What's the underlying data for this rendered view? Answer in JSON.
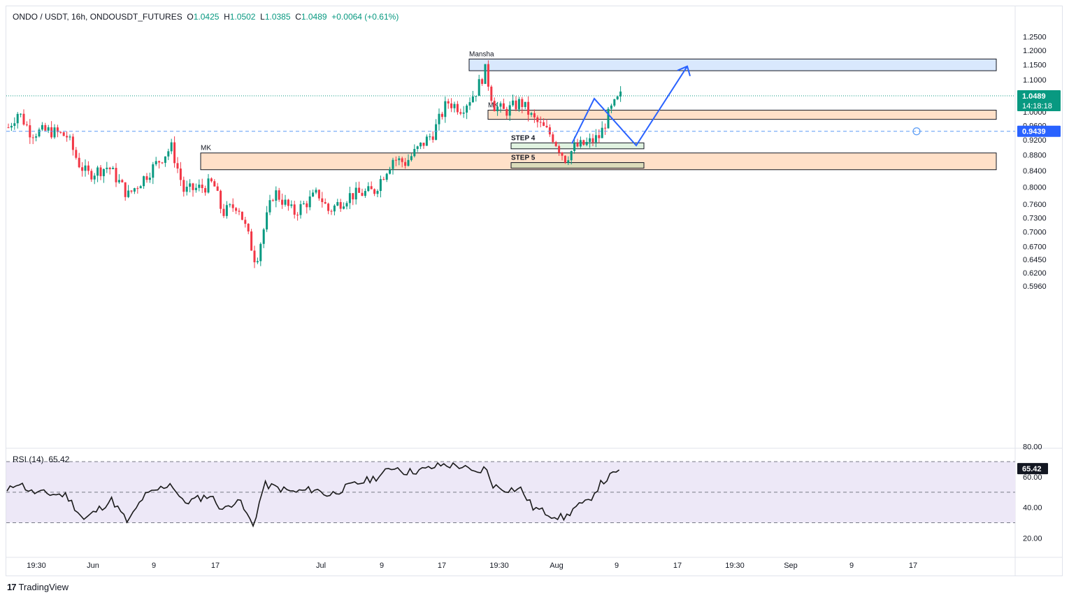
{
  "header": {
    "symbol": "ONDO / USDT, 16h, ONDOUSDT_FUTURES",
    "o_label": "O",
    "o_value": "1.0425",
    "h_label": "H",
    "h_value": "1.0502",
    "l_label": "L",
    "l_value": "1.0385",
    "c_label": "C",
    "c_value": "1.0489",
    "change": "+0.0064 (+0.61%)"
  },
  "rsi_legend": {
    "name": "RSI (14)",
    "value": "65.42"
  },
  "footer": {
    "brand": "TradingView",
    "logo_mark": "17"
  },
  "colors": {
    "up": "#089981",
    "down": "#f23645",
    "accent": "#2962ff",
    "zone_orange": "#ffe0c8",
    "zone_blue": "#d9e8fd",
    "zone_green": "#e0f2e0",
    "zone_olive": "#dcdcba",
    "rsi_band": "#ede8f7"
  },
  "chart_data": [
    {
      "type": "candlestick",
      "title": "",
      "y_scale": "log",
      "ylim": [
        0.585,
        1.255
      ],
      "y_ticks": [
        "1.2500",
        "1.2000",
        "1.1500",
        "1.1000",
        "1.0000",
        "0.9600",
        "0.9200",
        "0.8800",
        "0.8400",
        "0.8000",
        "0.7600",
        "0.7300",
        "0.7000",
        "0.6700",
        "0.6450",
        "0.6200",
        "0.5960"
      ],
      "x_tick_labels": [
        "19:30",
        "Jun",
        "9",
        "17",
        "Jul",
        "9",
        "17",
        "19:30",
        "Aug",
        "9",
        "17",
        "19:30",
        "Sep",
        "9",
        "17"
      ],
      "last_price_label": "1.0489",
      "countdown": "14:18:18",
      "alert_price_label": "0.9439",
      "annotations": [
        {
          "text": "Mansha",
          "kind": "zone",
          "color": "blue",
          "top": 1.17,
          "bottom": 1.13
        },
        {
          "text": "MK",
          "kind": "zone",
          "color": "orange",
          "top": 1.005,
          "bottom": 0.978
        },
        {
          "text": "MK",
          "kind": "zone",
          "color": "orange",
          "top": 0.885,
          "bottom": 0.842
        },
        {
          "text": "STEP 4",
          "kind": "zone",
          "color": "green",
          "top": 0.912,
          "bottom": 0.896
        },
        {
          "text": "STEP 5",
          "kind": "zone",
          "color": "olive",
          "top": 0.86,
          "bottom": 0.846
        }
      ],
      "projection_path_prices": [
        0.91,
        1.04,
        0.905,
        1.145
      ],
      "grid": false
    },
    {
      "type": "line",
      "title": "RSI (14)",
      "ylim": [
        20,
        80
      ],
      "y_ticks": [
        "80.00",
        "60.00",
        "40.00",
        "20.00"
      ],
      "band": [
        30,
        70
      ],
      "midline": 50,
      "last_value_label": "65.42",
      "grid": false
    }
  ]
}
